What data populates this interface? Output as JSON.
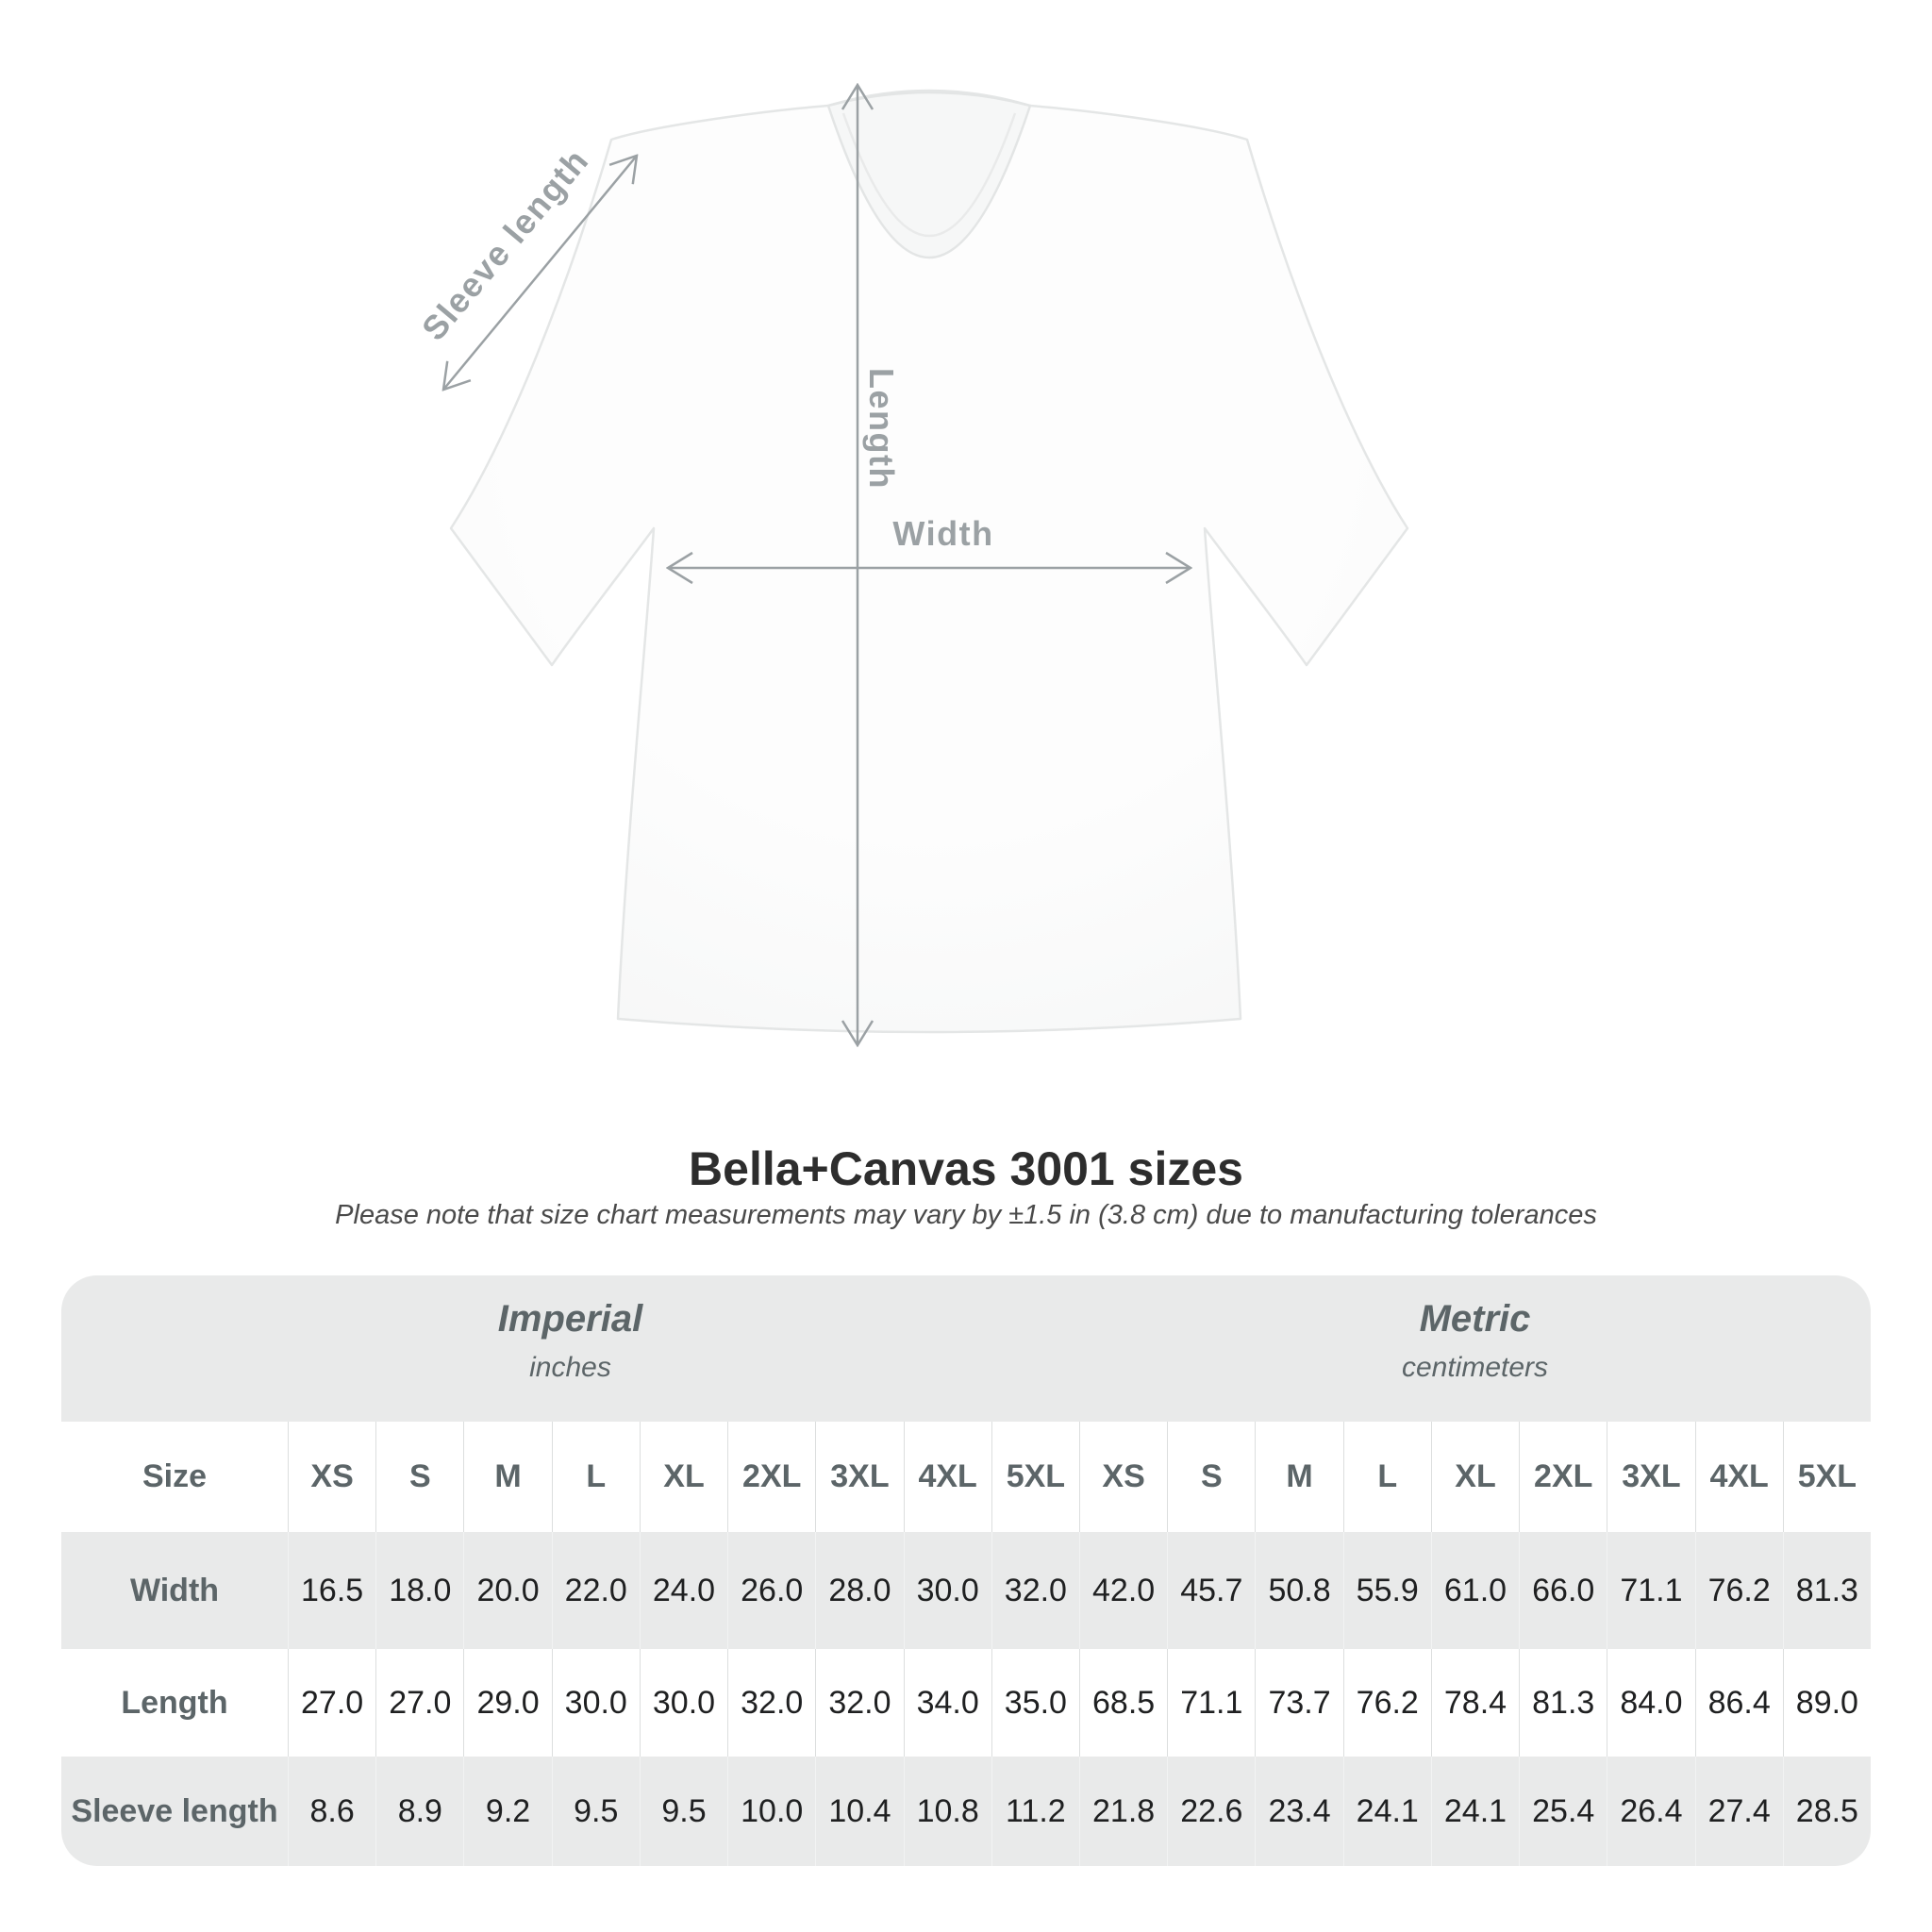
{
  "title": "Bella+Canvas 3001 sizes",
  "subtitle": "Please note that size chart measurements may vary by ±1.5 in (3.8 cm) due to manufacturing tolerances",
  "diagram": {
    "sleeve_label": "Sleeve length",
    "length_label": "Length",
    "width_label": "Width",
    "arrow_color": "#9ba1a4"
  },
  "table": {
    "size_header": "Size",
    "groups": [
      {
        "label": "Imperial",
        "sublabel": "inches"
      },
      {
        "label": "Metric",
        "sublabel": "centimeters"
      }
    ],
    "sizes_imperial": [
      "XS",
      "S",
      "M",
      "L",
      "XL",
      "2XL",
      "3XL",
      "4XL",
      "5XL"
    ],
    "sizes_metric": [
      "XS",
      "S",
      "M",
      "L",
      "XL",
      "2XL",
      "3XL",
      "4XL",
      "5XL"
    ],
    "rows": [
      {
        "label": "Width",
        "imperial": [
          "16.5",
          "18.0",
          "20.0",
          "22.0",
          "24.0",
          "26.0",
          "28.0",
          "30.0",
          "32.0"
        ],
        "metric": [
          "42.0",
          "45.7",
          "50.8",
          "55.9",
          "61.0",
          "66.0",
          "71.1",
          "76.2",
          "81.3"
        ]
      },
      {
        "label": "Length",
        "imperial": [
          "27.0",
          "27.0",
          "29.0",
          "30.0",
          "30.0",
          "32.0",
          "32.0",
          "34.0",
          "35.0"
        ],
        "metric": [
          "68.5",
          "71.1",
          "73.7",
          "76.2",
          "78.4",
          "81.3",
          "84.0",
          "86.4",
          "89.0"
        ]
      },
      {
        "label": "Sleeve length",
        "imperial": [
          "8.6",
          "8.9",
          "9.2",
          "9.5",
          "9.5",
          "10.0",
          "10.4",
          "10.8",
          "11.2"
        ],
        "metric": [
          "21.8",
          "22.6",
          "23.4",
          "24.1",
          "24.1",
          "25.4",
          "26.4",
          "27.4",
          "28.5"
        ]
      }
    ]
  },
  "chart_data": {
    "type": "table",
    "title": "Bella+Canvas 3001 sizes",
    "note": "Please note that size chart measurements may vary by ±1.5 in (3.8 cm) due to manufacturing tolerances",
    "unit_groups": [
      {
        "name": "Imperial",
        "unit": "inches"
      },
      {
        "name": "Metric",
        "unit": "centimeters"
      }
    ],
    "sizes": [
      "XS",
      "S",
      "M",
      "L",
      "XL",
      "2XL",
      "3XL",
      "4XL",
      "5XL"
    ],
    "measurements": [
      {
        "label": "Width",
        "imperial_in": [
          16.5,
          18.0,
          20.0,
          22.0,
          24.0,
          26.0,
          28.0,
          30.0,
          32.0
        ],
        "metric_cm": [
          42.0,
          45.7,
          50.8,
          55.9,
          61.0,
          66.0,
          71.1,
          76.2,
          81.3
        ]
      },
      {
        "label": "Length",
        "imperial_in": [
          27.0,
          27.0,
          29.0,
          30.0,
          30.0,
          32.0,
          32.0,
          34.0,
          35.0
        ],
        "metric_cm": [
          68.5,
          71.1,
          73.7,
          76.2,
          78.4,
          81.3,
          84.0,
          86.4,
          89.0
        ]
      },
      {
        "label": "Sleeve length",
        "imperial_in": [
          8.6,
          8.9,
          9.2,
          9.5,
          9.5,
          10.0,
          10.4,
          10.8,
          11.2
        ],
        "metric_cm": [
          21.8,
          22.6,
          23.4,
          24.1,
          24.1,
          25.4,
          26.4,
          27.4,
          28.5
        ]
      }
    ]
  }
}
